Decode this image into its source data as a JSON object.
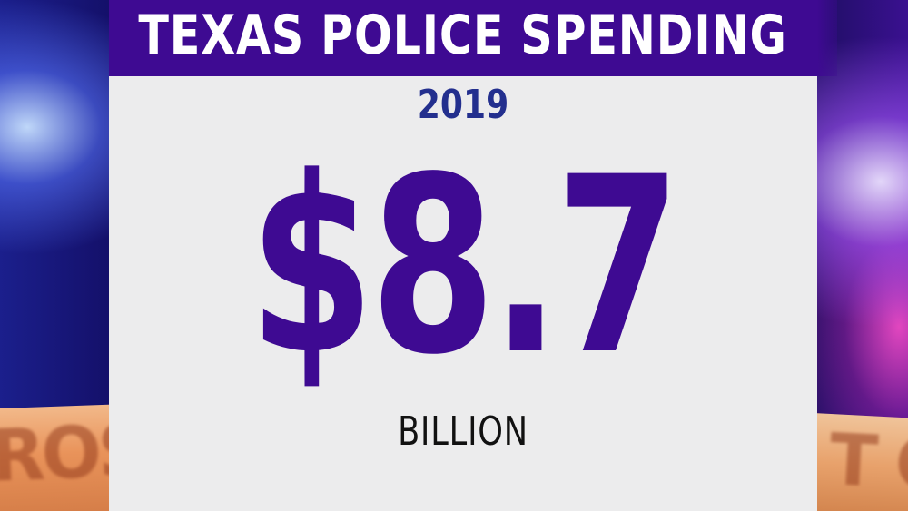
{
  "header": {
    "title": "TEXAS POLICE SPENDING"
  },
  "card": {
    "year": "2019",
    "amount": "$8.7",
    "unit": "BILLION"
  },
  "background": {
    "tape_left_text": "ROS",
    "tape_right_text": "T C",
    "colors": {
      "header": "#3e0a92",
      "amount": "#3e0a92",
      "year": "#232f8e",
      "card": "#ececed"
    }
  }
}
